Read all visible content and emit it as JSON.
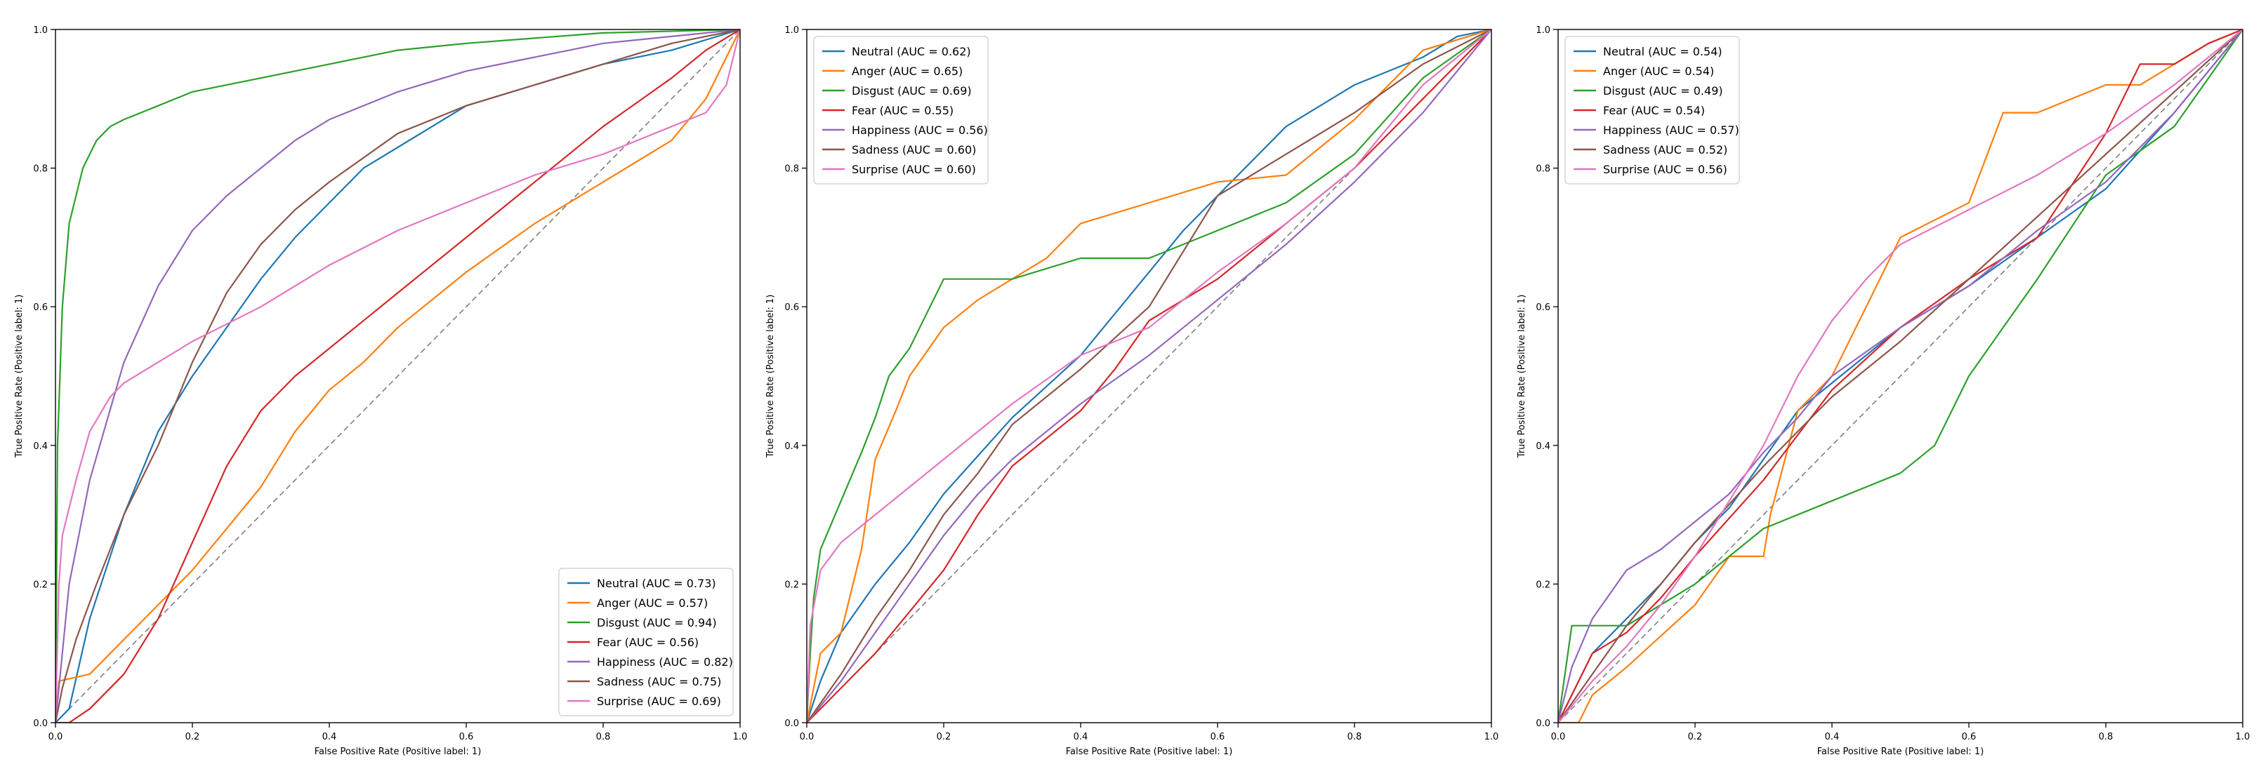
{
  "colors": {
    "Neutral": "#1f77b4",
    "Anger": "#ff7f0e",
    "Disgust": "#2ca02c",
    "Fear": "#d62728",
    "Happiness": "#9467bd",
    "Sadness": "#8c564b",
    "Surprise": "#e377c2",
    "chance": "#7f7f7f"
  },
  "chart_data": [
    {
      "type": "line",
      "xlabel": "False Positive Rate (Positive label: 1)",
      "ylabel": "True Positive Rate (Positive label: 1)",
      "xlim": [
        0,
        1
      ],
      "ylim": [
        0,
        1
      ],
      "xticks": [
        "0.0",
        "0.2",
        "0.4",
        "0.6",
        "0.8",
        "1.0"
      ],
      "yticks": [
        "0.0",
        "0.2",
        "0.4",
        "0.6",
        "0.8",
        "1.0"
      ],
      "legend_position": "lower-right",
      "chance_line": true,
      "series": [
        {
          "name": "Neutral",
          "label": "Neutral (AUC = 0.73)",
          "x": [
            0,
            0.02,
            0.05,
            0.1,
            0.15,
            0.2,
            0.25,
            0.3,
            0.35,
            0.4,
            0.45,
            0.5,
            0.55,
            0.6,
            0.7,
            0.8,
            0.9,
            1.0
          ],
          "y": [
            0,
            0.02,
            0.15,
            0.3,
            0.42,
            0.5,
            0.57,
            0.64,
            0.7,
            0.75,
            0.8,
            0.83,
            0.86,
            0.89,
            0.92,
            0.95,
            0.97,
            1.0
          ]
        },
        {
          "name": "Anger",
          "label": "Anger (AUC = 0.57)",
          "x": [
            0,
            0.005,
            0.05,
            0.1,
            0.15,
            0.2,
            0.25,
            0.3,
            0.35,
            0.4,
            0.45,
            0.5,
            0.6,
            0.7,
            0.8,
            0.9,
            0.95,
            1.0
          ],
          "y": [
            0,
            0.06,
            0.07,
            0.12,
            0.17,
            0.22,
            0.28,
            0.34,
            0.42,
            0.48,
            0.52,
            0.57,
            0.65,
            0.72,
            0.78,
            0.84,
            0.9,
            1.0
          ]
        },
        {
          "name": "Disgust",
          "label": "Disgust (AUC = 0.94)",
          "x": [
            0,
            0.003,
            0.01,
            0.02,
            0.04,
            0.06,
            0.08,
            0.1,
            0.15,
            0.2,
            0.3,
            0.4,
            0.5,
            0.6,
            0.8,
            1.0
          ],
          "y": [
            0,
            0.4,
            0.6,
            0.72,
            0.8,
            0.84,
            0.86,
            0.87,
            0.89,
            0.91,
            0.93,
            0.95,
            0.97,
            0.98,
            0.995,
            1.0
          ]
        },
        {
          "name": "Fear",
          "label": "Fear (AUC = 0.56)",
          "x": [
            0,
            0.02,
            0.05,
            0.1,
            0.15,
            0.2,
            0.25,
            0.3,
            0.35,
            0.4,
            0.5,
            0.6,
            0.7,
            0.8,
            0.9,
            0.95,
            1.0
          ],
          "y": [
            0,
            0,
            0.02,
            0.07,
            0.15,
            0.26,
            0.37,
            0.45,
            0.5,
            0.54,
            0.62,
            0.7,
            0.78,
            0.86,
            0.93,
            0.97,
            1.0
          ]
        },
        {
          "name": "Happiness",
          "label": "Happiness (AUC = 0.82)",
          "x": [
            0,
            0.02,
            0.05,
            0.1,
            0.15,
            0.2,
            0.25,
            0.3,
            0.35,
            0.4,
            0.5,
            0.6,
            0.7,
            0.8,
            0.9,
            1.0
          ],
          "y": [
            0,
            0.2,
            0.35,
            0.52,
            0.63,
            0.71,
            0.76,
            0.8,
            0.84,
            0.87,
            0.91,
            0.94,
            0.96,
            0.98,
            0.99,
            1.0
          ]
        },
        {
          "name": "Sadness",
          "label": "Sadness (AUC = 0.75)",
          "x": [
            0,
            0.01,
            0.03,
            0.06,
            0.1,
            0.15,
            0.2,
            0.25,
            0.3,
            0.35,
            0.4,
            0.5,
            0.6,
            0.7,
            0.8,
            0.9,
            1.0
          ],
          "y": [
            0,
            0.05,
            0.12,
            0.2,
            0.3,
            0.4,
            0.52,
            0.62,
            0.69,
            0.74,
            0.78,
            0.85,
            0.89,
            0.92,
            0.95,
            0.98,
            1.0
          ]
        },
        {
          "name": "Surprise",
          "label": "Surprise (AUC = 0.69)",
          "x": [
            0,
            0.005,
            0.01,
            0.03,
            0.05,
            0.08,
            0.1,
            0.15,
            0.2,
            0.3,
            0.4,
            0.5,
            0.6,
            0.7,
            0.8,
            0.9,
            0.95,
            0.98,
            1.0
          ],
          "y": [
            0,
            0.2,
            0.27,
            0.35,
            0.42,
            0.47,
            0.49,
            0.52,
            0.55,
            0.6,
            0.66,
            0.71,
            0.75,
            0.79,
            0.82,
            0.86,
            0.88,
            0.92,
            1.0
          ]
        }
      ]
    },
    {
      "type": "line",
      "xlabel": "False Positive Rate (Positive label: 1)",
      "ylabel": "True Positive Rate (Positive label: 1)",
      "xlim": [
        0,
        1
      ],
      "ylim": [
        0,
        1
      ],
      "xticks": [
        "0.0",
        "0.2",
        "0.4",
        "0.6",
        "0.8",
        "1.0"
      ],
      "yticks": [
        "0.0",
        "0.2",
        "0.4",
        "0.6",
        "0.8",
        "1.0"
      ],
      "legend_position": "upper-left",
      "chance_line": true,
      "series": [
        {
          "name": "Neutral",
          "label": "Neutral (AUC = 0.62)",
          "x": [
            0,
            0.02,
            0.05,
            0.1,
            0.15,
            0.2,
            0.3,
            0.4,
            0.5,
            0.55,
            0.6,
            0.7,
            0.8,
            0.9,
            0.95,
            1.0
          ],
          "y": [
            0,
            0.06,
            0.13,
            0.2,
            0.26,
            0.33,
            0.44,
            0.53,
            0.65,
            0.71,
            0.76,
            0.86,
            0.92,
            0.96,
            0.99,
            1.0
          ]
        },
        {
          "name": "Anger",
          "label": "Anger (AUC = 0.65)",
          "x": [
            0,
            0.02,
            0.05,
            0.08,
            0.1,
            0.13,
            0.15,
            0.2,
            0.25,
            0.3,
            0.35,
            0.4,
            0.5,
            0.6,
            0.7,
            0.8,
            0.9,
            1.0
          ],
          "y": [
            0,
            0.1,
            0.13,
            0.25,
            0.38,
            0.45,
            0.5,
            0.57,
            0.61,
            0.64,
            0.67,
            0.72,
            0.75,
            0.78,
            0.79,
            0.87,
            0.97,
            1.0
          ]
        },
        {
          "name": "Disgust",
          "label": "Disgust (AUC = 0.69)",
          "x": [
            0,
            0.005,
            0.01,
            0.02,
            0.05,
            0.08,
            0.1,
            0.12,
            0.15,
            0.18,
            0.2,
            0.3,
            0.4,
            0.5,
            0.6,
            0.7,
            0.8,
            0.9,
            1.0
          ],
          "y": [
            0,
            0.1,
            0.18,
            0.25,
            0.32,
            0.39,
            0.44,
            0.5,
            0.54,
            0.6,
            0.64,
            0.64,
            0.67,
            0.67,
            0.71,
            0.75,
            0.82,
            0.93,
            1.0
          ]
        },
        {
          "name": "Fear",
          "label": "Fear (AUC = 0.55)",
          "x": [
            0,
            0.05,
            0.1,
            0.15,
            0.2,
            0.25,
            0.3,
            0.35,
            0.4,
            0.45,
            0.5,
            0.6,
            0.7,
            0.8,
            0.9,
            1.0
          ],
          "y": [
            0,
            0.05,
            0.1,
            0.16,
            0.22,
            0.3,
            0.37,
            0.41,
            0.45,
            0.51,
            0.58,
            0.64,
            0.72,
            0.8,
            0.9,
            1.0
          ]
        },
        {
          "name": "Happiness",
          "label": "Happiness (AUC = 0.56)",
          "x": [
            0,
            0.05,
            0.1,
            0.15,
            0.2,
            0.25,
            0.3,
            0.4,
            0.5,
            0.6,
            0.7,
            0.8,
            0.9,
            1.0
          ],
          "y": [
            0,
            0.06,
            0.13,
            0.2,
            0.27,
            0.33,
            0.38,
            0.46,
            0.53,
            0.61,
            0.69,
            0.78,
            0.88,
            1.0
          ]
        },
        {
          "name": "Sadness",
          "label": "Sadness (AUC = 0.60)",
          "x": [
            0,
            0.05,
            0.1,
            0.15,
            0.2,
            0.25,
            0.3,
            0.4,
            0.5,
            0.55,
            0.6,
            0.7,
            0.8,
            0.9,
            1.0
          ],
          "y": [
            0,
            0.07,
            0.15,
            0.22,
            0.3,
            0.36,
            0.43,
            0.51,
            0.6,
            0.68,
            0.76,
            0.82,
            0.88,
            0.95,
            1.0
          ]
        },
        {
          "name": "Surprise",
          "label": "Surprise (AUC = 0.60)",
          "x": [
            0,
            0.005,
            0.02,
            0.05,
            0.1,
            0.15,
            0.2,
            0.25,
            0.3,
            0.4,
            0.5,
            0.6,
            0.7,
            0.8,
            0.9,
            1.0
          ],
          "y": [
            0,
            0.14,
            0.22,
            0.26,
            0.3,
            0.34,
            0.38,
            0.42,
            0.46,
            0.53,
            0.57,
            0.65,
            0.72,
            0.8,
            0.92,
            1.0
          ]
        }
      ]
    },
    {
      "type": "line",
      "xlabel": "False Positive Rate (Positive label: 1)",
      "ylabel": "True Positive Rate (Positive label: 1)",
      "xlim": [
        0,
        1
      ],
      "ylim": [
        0,
        1
      ],
      "xticks": [
        "0.0",
        "0.2",
        "0.4",
        "0.6",
        "0.8",
        "1.0"
      ],
      "yticks": [
        "0.0",
        "0.2",
        "0.4",
        "0.6",
        "0.8",
        "1.0"
      ],
      "legend_position": "upper-left",
      "chance_line": true,
      "series": [
        {
          "name": "Neutral",
          "label": "Neutral (AUC = 0.54)",
          "x": [
            0,
            0.05,
            0.1,
            0.15,
            0.2,
            0.25,
            0.3,
            0.35,
            0.4,
            0.5,
            0.6,
            0.7,
            0.8,
            0.9,
            1.0
          ],
          "y": [
            0,
            0.1,
            0.15,
            0.2,
            0.26,
            0.31,
            0.38,
            0.45,
            0.49,
            0.57,
            0.63,
            0.7,
            0.77,
            0.88,
            1.0
          ]
        },
        {
          "name": "Anger",
          "label": "Anger (AUC = 0.54)",
          "x": [
            0,
            0.03,
            0.05,
            0.1,
            0.2,
            0.25,
            0.3,
            0.31,
            0.35,
            0.4,
            0.45,
            0.5,
            0.6,
            0.65,
            0.7,
            0.8,
            0.85,
            0.9,
            0.95,
            1.0
          ],
          "y": [
            0,
            0,
            0.04,
            0.08,
            0.17,
            0.24,
            0.24,
            0.3,
            0.45,
            0.5,
            0.6,
            0.7,
            0.75,
            0.88,
            0.88,
            0.92,
            0.92,
            0.95,
            0.98,
            1.0
          ]
        },
        {
          "name": "Disgust",
          "label": "Disgust (AUC = 0.49)",
          "x": [
            0,
            0.02,
            0.05,
            0.1,
            0.15,
            0.2,
            0.25,
            0.3,
            0.4,
            0.5,
            0.55,
            0.6,
            0.65,
            0.7,
            0.8,
            0.9,
            0.95,
            1.0
          ],
          "y": [
            0,
            0.14,
            0.14,
            0.14,
            0.17,
            0.2,
            0.24,
            0.28,
            0.32,
            0.36,
            0.4,
            0.5,
            0.57,
            0.64,
            0.79,
            0.86,
            0.93,
            1.0
          ]
        },
        {
          "name": "Fear",
          "label": "Fear (AUC = 0.54)",
          "x": [
            0,
            0.05,
            0.1,
            0.15,
            0.2,
            0.3,
            0.4,
            0.5,
            0.6,
            0.7,
            0.8,
            0.85,
            0.9,
            0.95,
            1.0
          ],
          "y": [
            0,
            0.1,
            0.13,
            0.18,
            0.24,
            0.35,
            0.48,
            0.57,
            0.64,
            0.7,
            0.85,
            0.95,
            0.95,
            0.98,
            1.0
          ]
        },
        {
          "name": "Happiness",
          "label": "Happiness (AUC = 0.57)",
          "x": [
            0,
            0.02,
            0.05,
            0.1,
            0.15,
            0.2,
            0.25,
            0.3,
            0.35,
            0.4,
            0.5,
            0.6,
            0.7,
            0.8,
            0.9,
            1.0
          ],
          "y": [
            0,
            0.08,
            0.15,
            0.22,
            0.25,
            0.29,
            0.33,
            0.39,
            0.44,
            0.5,
            0.57,
            0.63,
            0.71,
            0.78,
            0.88,
            1.0
          ]
        },
        {
          "name": "Sadness",
          "label": "Sadness (AUC = 0.52)",
          "x": [
            0,
            0.05,
            0.1,
            0.15,
            0.2,
            0.3,
            0.4,
            0.5,
            0.6,
            0.7,
            0.8,
            0.9,
            1.0
          ],
          "y": [
            0,
            0.07,
            0.14,
            0.2,
            0.26,
            0.37,
            0.47,
            0.55,
            0.64,
            0.73,
            0.82,
            0.91,
            1.0
          ]
        },
        {
          "name": "Surprise",
          "label": "Surprise (AUC = 0.56)",
          "x": [
            0,
            0.05,
            0.1,
            0.15,
            0.2,
            0.25,
            0.3,
            0.35,
            0.4,
            0.45,
            0.5,
            0.6,
            0.7,
            0.8,
            0.9,
            1.0
          ],
          "y": [
            0,
            0.06,
            0.11,
            0.17,
            0.24,
            0.32,
            0.4,
            0.5,
            0.58,
            0.64,
            0.69,
            0.74,
            0.79,
            0.85,
            0.92,
            1.0
          ]
        }
      ]
    }
  ]
}
